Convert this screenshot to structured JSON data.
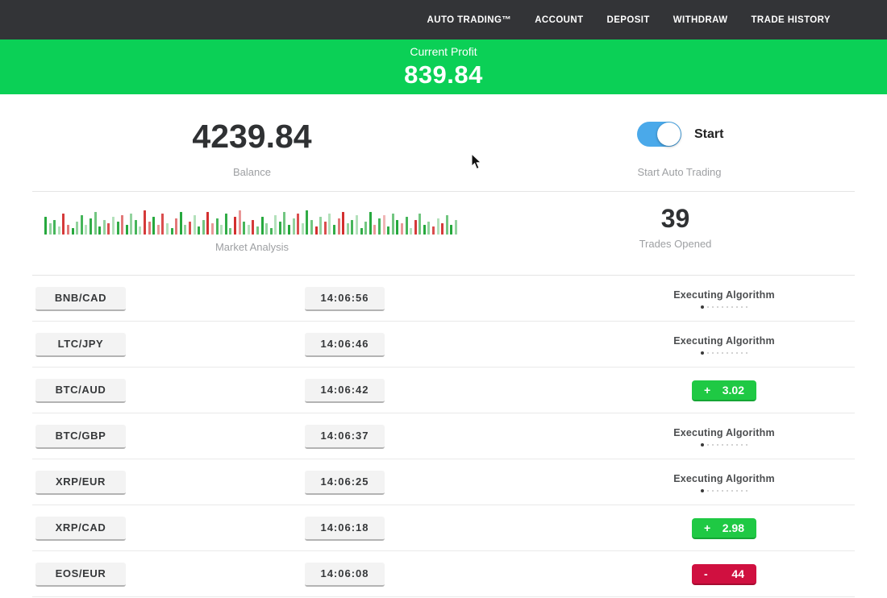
{
  "nav": {
    "items": [
      {
        "label": "AUTO TRADING™"
      },
      {
        "label": "ACCOUNT"
      },
      {
        "label": "DEPOSIT"
      },
      {
        "label": "WITHDRAW"
      },
      {
        "label": "TRADE HISTORY"
      }
    ]
  },
  "banner": {
    "label": "Current Profit",
    "value": "839.84"
  },
  "balance": {
    "value": "4239.84",
    "label": "Balance"
  },
  "auto_trading": {
    "toggle_label": "Start",
    "caption": "Start Auto Trading",
    "toggle_on": true
  },
  "market_analysis": {
    "label": "Market Analysis",
    "bars": [
      "g22",
      "g14",
      "g18",
      "g10",
      "r26",
      "r12",
      "g8",
      "g16",
      "g24",
      "g12",
      "g20",
      "g28",
      "g10",
      "g18",
      "r14",
      "g22",
      "g16",
      "r24",
      "g12",
      "g26",
      "g18",
      "g10",
      "r30",
      "r16",
      "g22",
      "r12",
      "r26",
      "g14",
      "g8",
      "r20",
      "g28",
      "g12",
      "r16",
      "g24",
      "g10",
      "g18",
      "r28",
      "r14",
      "g20",
      "g12",
      "g26",
      "g8",
      "r22",
      "r30",
      "g16",
      "g12",
      "r18",
      "g10",
      "g22",
      "g14",
      "g8",
      "g24",
      "g16",
      "g28",
      "g12",
      "g20",
      "r26",
      "g14",
      "g30",
      "g18",
      "r10",
      "g22",
      "r16",
      "g26",
      "g12",
      "r20",
      "r28",
      "g14",
      "g18",
      "g24",
      "g8",
      "g16",
      "g28",
      "r12",
      "g20",
      "r24",
      "g10",
      "g26",
      "g18",
      "r14",
      "g22",
      "g8",
      "r18",
      "g26",
      "g12",
      "g16",
      "r10",
      "g20",
      "r14",
      "g24",
      "g12",
      "g18"
    ]
  },
  "trades_opened": {
    "value": "39",
    "label": "Trades Opened"
  },
  "trades": [
    {
      "pair": "BNB/CAD",
      "time": "14:06:56",
      "result": {
        "type": "executing",
        "label": "Executing Algorithm"
      }
    },
    {
      "pair": "LTC/JPY",
      "time": "14:06:46",
      "result": {
        "type": "executing",
        "label": "Executing Algorithm"
      }
    },
    {
      "pair": "BTC/AUD",
      "time": "14:06:42",
      "result": {
        "type": "profit",
        "sign": "+",
        "value": "3.02"
      }
    },
    {
      "pair": "BTC/GBP",
      "time": "14:06:37",
      "result": {
        "type": "executing",
        "label": "Executing Algorithm"
      }
    },
    {
      "pair": "XRP/EUR",
      "time": "14:06:25",
      "result": {
        "type": "executing",
        "label": "Executing Algorithm"
      }
    },
    {
      "pair": "XRP/CAD",
      "time": "14:06:18",
      "result": {
        "type": "profit",
        "sign": "+",
        "value": "2.98"
      }
    },
    {
      "pair": "EOS/EUR",
      "time": "14:06:08",
      "result": {
        "type": "loss",
        "sign": "-",
        "value": "44"
      }
    }
  ],
  "colors": {
    "topbar": "#333437",
    "banner_green": "#0bd056",
    "profit_green": "#1fc944",
    "profit_border": "#15a634",
    "loss_red": "#d01040",
    "loss_border": "#a50c31",
    "toggle_blue": "#4aa9ea",
    "chart_green": "#26a83d",
    "chart_red": "#d32f2f"
  },
  "executing_dots": 10
}
